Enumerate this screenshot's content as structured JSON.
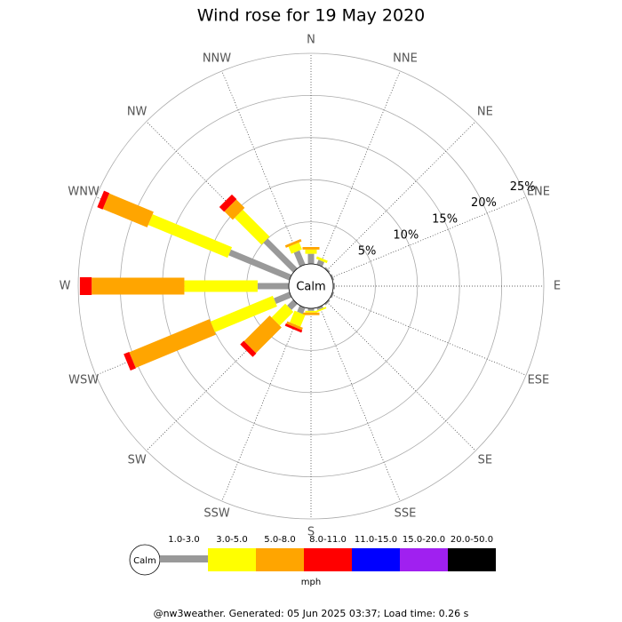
{
  "chart_data": {
    "type": "wind_rose",
    "title": "Wind rose for 19 May 2020",
    "directions": [
      "N",
      "NNE",
      "NE",
      "ENE",
      "E",
      "ESE",
      "SE",
      "SSE",
      "S",
      "SSW",
      "SW",
      "WSW",
      "W",
      "WNW",
      "NW",
      "NNW"
    ],
    "center_label": "Calm",
    "units": "mph",
    "rlim": [
      0,
      25
    ],
    "rticks": [
      {
        "value": 5,
        "label": "5%"
      },
      {
        "value": 10,
        "label": "10%"
      },
      {
        "value": 15,
        "label": "15%"
      },
      {
        "value": 20,
        "label": "20%"
      },
      {
        "value": 25,
        "label": "25%"
      }
    ],
    "series": [
      {
        "name": "1.0-3.0",
        "color": "#999999",
        "values": [
          1.2,
          0.6,
          0.2,
          0.2,
          0.2,
          0.2,
          0.2,
          0.3,
          0.3,
          0.8,
          1.0,
          2.0,
          3.7,
          7.8,
          5.0,
          1.8
        ]
      },
      {
        "name": "3.0-5.0",
        "color": "#ffff00",
        "values": [
          0.5,
          0.3,
          0,
          0,
          0,
          0,
          0,
          0.2,
          0.2,
          1.5,
          2.3,
          8.0,
          8.7,
          10.2,
          4.5,
          0.9
        ]
      },
      {
        "name": "5.0-8.0",
        "color": "#ffa500",
        "values": [
          0.3,
          0,
          0,
          0,
          0,
          0,
          0,
          0,
          0.3,
          0.3,
          4.3,
          10.3,
          11.0,
          5.7,
          1.4,
          0.3
        ]
      },
      {
        "name": "8.0-11.0",
        "color": "#ff0000",
        "values": [
          0,
          0,
          0,
          0,
          0,
          0,
          0,
          0,
          0,
          0.3,
          0.6,
          0.7,
          1.4,
          0.7,
          0.8,
          0
        ]
      },
      {
        "name": "11.0-15.0",
        "color": "#0000ff",
        "values": [
          0,
          0,
          0,
          0,
          0,
          0,
          0,
          0,
          0,
          0,
          0,
          0,
          0,
          0,
          0,
          0
        ]
      },
      {
        "name": "15.0-20.0",
        "color": "#a020f0",
        "values": [
          0,
          0,
          0,
          0,
          0,
          0,
          0,
          0,
          0,
          0,
          0,
          0,
          0,
          0,
          0,
          0
        ]
      },
      {
        "name": "20.0-50.0",
        "color": "#000000",
        "values": [
          0,
          0,
          0,
          0,
          0,
          0,
          0,
          0,
          0,
          0,
          0,
          0,
          0,
          0,
          0,
          0
        ]
      }
    ],
    "footer": "@nw3weather. Generated: 05 Jun 2025 03:37; Load time: 0.26 s"
  }
}
